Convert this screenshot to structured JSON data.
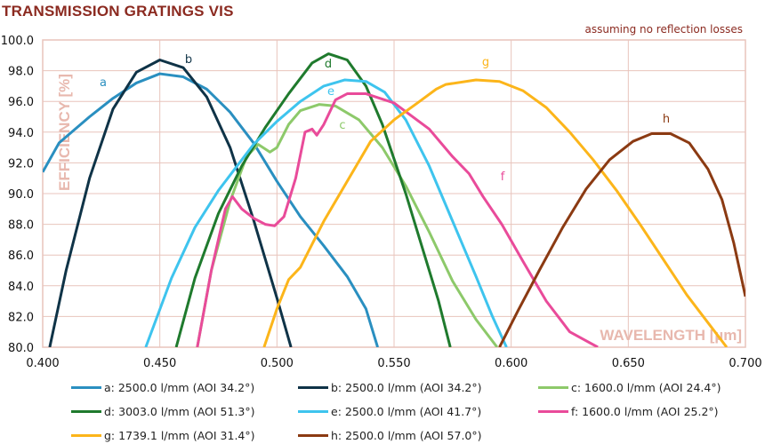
{
  "chart_data": {
    "type": "line",
    "title": "TRANSMISSION GRATINGS VIS",
    "annotation": "assuming no reflection losses",
    "xlabel": "WAVELENGTH [µm]",
    "ylabel": "EFFICIENCY [%]",
    "xlim": [
      0.4,
      0.7
    ],
    "ylim": [
      80,
      100
    ],
    "xticks": [
      "0.400",
      "0.450",
      "0.500",
      "0.550",
      "0.600",
      "0.650",
      "0.700"
    ],
    "yticks": [
      "80.0",
      "82.0",
      "84.0",
      "86.0",
      "88.0",
      "90.0",
      "92.0",
      "94.0",
      "96.0",
      "98.0",
      "100.0"
    ],
    "grid": true,
    "legend_placement": "bottom",
    "series": [
      {
        "name": "a: 2500.0 l/mm (AOI 34.2°)",
        "label": "a",
        "color": "#2a8fc0",
        "points": [
          [
            0.4,
            91.4
          ],
          [
            0.407,
            93.3
          ],
          [
            0.42,
            95
          ],
          [
            0.43,
            96.2
          ],
          [
            0.44,
            97.2
          ],
          [
            0.45,
            97.8
          ],
          [
            0.46,
            97.6
          ],
          [
            0.47,
            96.8
          ],
          [
            0.48,
            95.3
          ],
          [
            0.49,
            93.3
          ],
          [
            0.5,
            90.8
          ],
          [
            0.51,
            88.5
          ],
          [
            0.52,
            86.6
          ],
          [
            0.53,
            84.6
          ],
          [
            0.538,
            82.5
          ],
          [
            0.543,
            80
          ]
        ]
      },
      {
        "name": "b: 2500.0 l/mm (AOI 34.2°)",
        "label": "b",
        "color": "#0f3347",
        "points": [
          [
            0.403,
            80
          ],
          [
            0.41,
            85
          ],
          [
            0.42,
            91
          ],
          [
            0.43,
            95.5
          ],
          [
            0.44,
            97.9
          ],
          [
            0.45,
            98.7
          ],
          [
            0.46,
            98.2
          ],
          [
            0.47,
            96.3
          ],
          [
            0.48,
            93
          ],
          [
            0.49,
            88.3
          ],
          [
            0.5,
            83.2
          ],
          [
            0.506,
            80
          ]
        ]
      },
      {
        "name": "c: 1600.0 l/mm (AOI 24.4°)",
        "label": "c",
        "color": "#8dc96a",
        "points": [
          [
            0.466,
            80
          ],
          [
            0.472,
            85
          ],
          [
            0.48,
            89.5
          ],
          [
            0.487,
            92.4
          ],
          [
            0.492,
            93.2
          ],
          [
            0.497,
            92.7
          ],
          [
            0.5,
            93
          ],
          [
            0.505,
            94.5
          ],
          [
            0.51,
            95.4
          ],
          [
            0.518,
            95.8
          ],
          [
            0.525,
            95.7
          ],
          [
            0.535,
            94.8
          ],
          [
            0.545,
            93
          ],
          [
            0.555,
            90.5
          ],
          [
            0.565,
            87.5
          ],
          [
            0.575,
            84.3
          ],
          [
            0.585,
            81.8
          ],
          [
            0.594,
            80
          ]
        ]
      },
      {
        "name": "d: 3003.0 l/mm (AOI 51.3°)",
        "label": "d",
        "color": "#1f7a2d",
        "points": [
          [
            0.457,
            80
          ],
          [
            0.465,
            84.5
          ],
          [
            0.475,
            88.7
          ],
          [
            0.485,
            91.8
          ],
          [
            0.495,
            94.3
          ],
          [
            0.505,
            96.5
          ],
          [
            0.515,
            98.5
          ],
          [
            0.522,
            99.1
          ],
          [
            0.53,
            98.7
          ],
          [
            0.538,
            97
          ],
          [
            0.545,
            94.5
          ],
          [
            0.555,
            90
          ],
          [
            0.563,
            86
          ],
          [
            0.569,
            83
          ],
          [
            0.574,
            80
          ]
        ]
      },
      {
        "name": "e: 2500.0 l/mm (AOI 41.7°)",
        "label": "e",
        "color": "#3ec4ee",
        "points": [
          [
            0.444,
            80
          ],
          [
            0.455,
            84.5
          ],
          [
            0.465,
            87.8
          ],
          [
            0.475,
            90.2
          ],
          [
            0.49,
            93.2
          ],
          [
            0.5,
            94.7
          ],
          [
            0.51,
            96
          ],
          [
            0.52,
            97
          ],
          [
            0.529,
            97.4
          ],
          [
            0.538,
            97.3
          ],
          [
            0.546,
            96.6
          ],
          [
            0.555,
            94.8
          ],
          [
            0.565,
            91.8
          ],
          [
            0.575,
            88.2
          ],
          [
            0.585,
            84.6
          ],
          [
            0.592,
            82
          ],
          [
            0.598,
            80
          ]
        ]
      },
      {
        "name": "f: 1600.0 l/mm (AOI 25.2°)",
        "label": "f",
        "color": "#e94b9a",
        "points": [
          [
            0.466,
            80
          ],
          [
            0.472,
            85
          ],
          [
            0.478,
            89
          ],
          [
            0.481,
            89.8
          ],
          [
            0.485,
            89
          ],
          [
            0.49,
            88.4
          ],
          [
            0.495,
            88
          ],
          [
            0.499,
            87.9
          ],
          [
            0.503,
            88.5
          ],
          [
            0.508,
            91
          ],
          [
            0.512,
            94
          ],
          [
            0.515,
            94.2
          ],
          [
            0.517,
            93.8
          ],
          [
            0.52,
            94.5
          ],
          [
            0.525,
            96.1
          ],
          [
            0.53,
            96.5
          ],
          [
            0.538,
            96.5
          ],
          [
            0.55,
            95.9
          ],
          [
            0.565,
            94.2
          ],
          [
            0.575,
            92.4
          ],
          [
            0.582,
            91.3
          ],
          [
            0.588,
            89.8
          ],
          [
            0.596,
            88
          ],
          [
            0.605,
            85.6
          ],
          [
            0.615,
            83
          ],
          [
            0.625,
            81
          ],
          [
            0.637,
            80
          ]
        ]
      },
      {
        "name": "g: 1739.1 l/mm (AOI 31.4°)",
        "label": "g",
        "color": "#fcb51a",
        "points": [
          [
            0.4945,
            80
          ],
          [
            0.5,
            82.5
          ],
          [
            0.505,
            84.4
          ],
          [
            0.51,
            85.2
          ],
          [
            0.515,
            86.7
          ],
          [
            0.52,
            88.2
          ],
          [
            0.53,
            90.8
          ],
          [
            0.54,
            93.4
          ],
          [
            0.55,
            94.8
          ],
          [
            0.56,
            95.9
          ],
          [
            0.568,
            96.8
          ],
          [
            0.572,
            97.1
          ],
          [
            0.585,
            97.4
          ],
          [
            0.595,
            97.3
          ],
          [
            0.605,
            96.7
          ],
          [
            0.615,
            95.6
          ],
          [
            0.625,
            94
          ],
          [
            0.635,
            92.2
          ],
          [
            0.645,
            90.2
          ],
          [
            0.655,
            88
          ],
          [
            0.665,
            85.7
          ],
          [
            0.675,
            83.4
          ],
          [
            0.685,
            81.4
          ],
          [
            0.692,
            80
          ]
        ]
      },
      {
        "name": "h: 2500.0 l/mm (AOI 57.0°)",
        "label": "h",
        "color": "#8b3a12",
        "points": [
          [
            0.595,
            80
          ],
          [
            0.603,
            82.4
          ],
          [
            0.612,
            85
          ],
          [
            0.622,
            87.8
          ],
          [
            0.632,
            90.3
          ],
          [
            0.642,
            92.2
          ],
          [
            0.652,
            93.4
          ],
          [
            0.66,
            93.9
          ],
          [
            0.668,
            93.9
          ],
          [
            0.676,
            93.3
          ],
          [
            0.684,
            91.6
          ],
          [
            0.69,
            89.6
          ],
          [
            0.695,
            86.8
          ],
          [
            0.7,
            83.3
          ]
        ]
      }
    ]
  }
}
